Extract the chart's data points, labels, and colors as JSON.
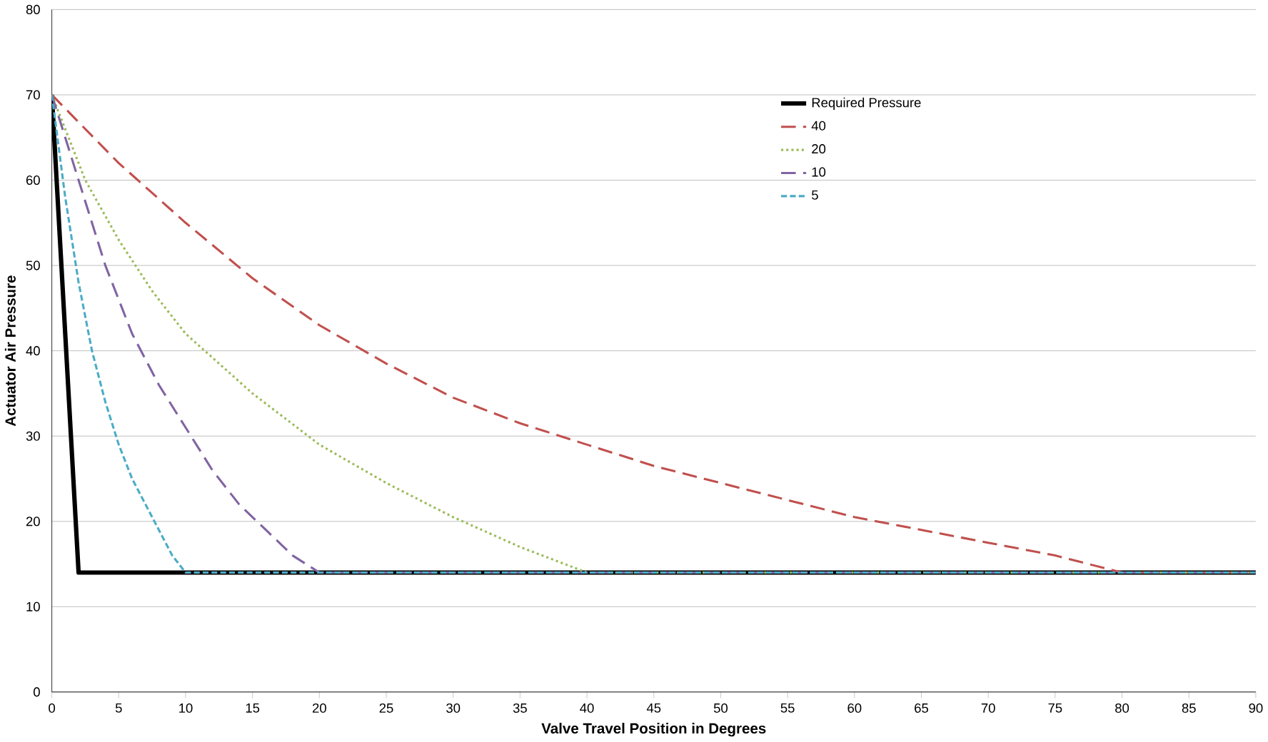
{
  "chart_data": {
    "type": "line",
    "xlabel": "Valve Travel Position in Degrees",
    "ylabel": "Actuator Air Pressure",
    "xlim": [
      0,
      90
    ],
    "ylim": [
      0,
      80
    ],
    "xticks": [
      0,
      5,
      10,
      15,
      20,
      25,
      30,
      35,
      40,
      45,
      50,
      55,
      60,
      65,
      70,
      75,
      80,
      85,
      90
    ],
    "yticks": [
      0,
      10,
      20,
      30,
      40,
      50,
      60,
      70,
      80
    ],
    "grid": "y",
    "legend": "top right",
    "marker": "none",
    "series": [
      {
        "name": "Required Pressure",
        "color": "#000000",
        "line_style": "solid",
        "x": [
          0,
          2,
          90
        ],
        "values": [
          70,
          14,
          14
        ]
      },
      {
        "name": "40",
        "color": "#c0504d",
        "line_style": "dashed",
        "x": [
          0,
          5,
          10,
          15,
          20,
          25,
          30,
          35,
          40,
          45,
          50,
          55,
          60,
          65,
          70,
          75,
          80,
          90
        ],
        "values": [
          70,
          62,
          55,
          48.5,
          43,
          38.5,
          34.5,
          31.5,
          29,
          26.5,
          24.5,
          22.5,
          20.5,
          19,
          17.5,
          16,
          14,
          14
        ]
      },
      {
        "name": "20",
        "color": "#9bbb59",
        "line_style": "dotted",
        "x": [
          0,
          2.5,
          5,
          7.5,
          10,
          15,
          20,
          25,
          30,
          35,
          40,
          90
        ],
        "values": [
          70,
          60,
          53,
          47,
          42,
          35,
          29,
          24.5,
          20.5,
          17,
          14,
          14
        ]
      },
      {
        "name": "10",
        "color": "#8064a2",
        "line_style": "dashed",
        "x": [
          0,
          2,
          4,
          6,
          8,
          10,
          12,
          14,
          16,
          18,
          20,
          90
        ],
        "values": [
          70,
          60,
          50,
          42,
          36,
          31,
          26,
          22,
          19,
          16,
          14,
          14
        ]
      },
      {
        "name": "5",
        "color": "#4bacc6",
        "line_style": "dashed",
        "x": [
          0,
          1,
          2,
          3,
          4,
          5,
          6,
          7,
          8,
          9,
          10,
          90
        ],
        "values": [
          70,
          58,
          48,
          40,
          34,
          29,
          25,
          22,
          19,
          16,
          14,
          14
        ]
      }
    ]
  }
}
